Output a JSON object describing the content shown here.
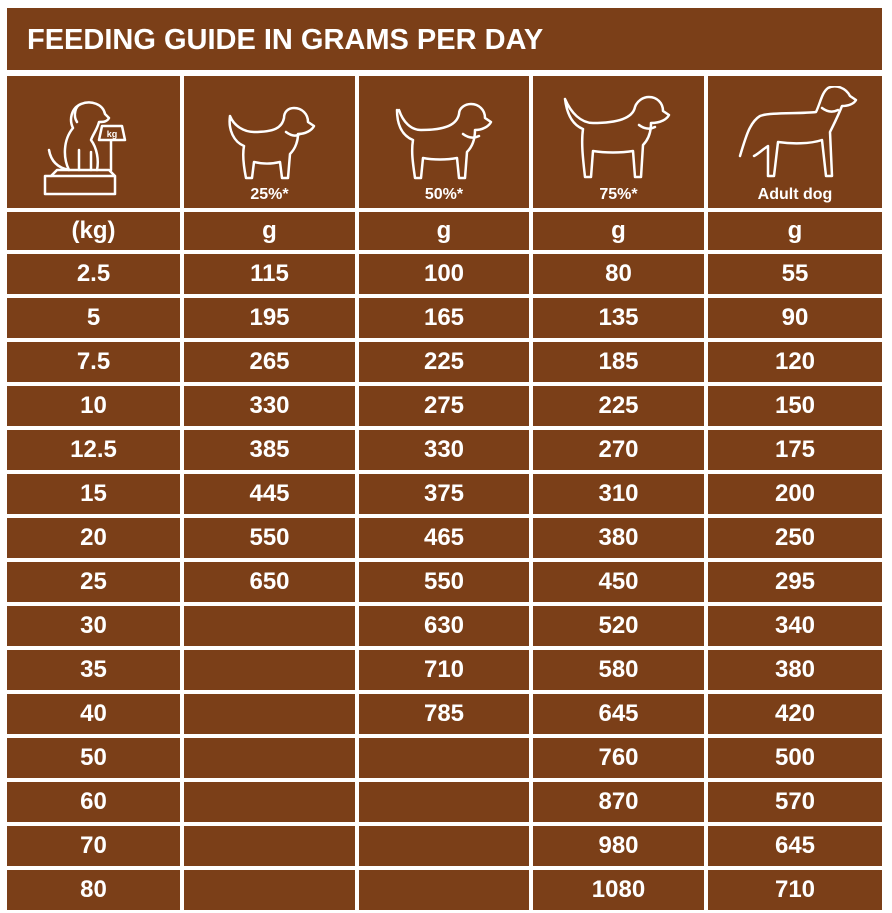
{
  "header": {
    "title": "FEEDING GUIDE IN GRAMS PER DAY"
  },
  "table": {
    "columns": [
      null,
      "25%*",
      "50%*",
      "75%*",
      "Adult dog"
    ],
    "units": [
      "(kg)",
      "g",
      "g",
      "g",
      "g"
    ],
    "rows": [
      [
        "2.5",
        "115",
        "100",
        "80",
        "55"
      ],
      [
        "5",
        "195",
        "165",
        "135",
        "90"
      ],
      [
        "7.5",
        "265",
        "225",
        "185",
        "120"
      ],
      [
        "10",
        "330",
        "275",
        "225",
        "150"
      ],
      [
        "12.5",
        "385",
        "330",
        "270",
        "175"
      ],
      [
        "15",
        "445",
        "375",
        "310",
        "200"
      ],
      [
        "20",
        "550",
        "465",
        "380",
        "250"
      ],
      [
        "25",
        "650",
        "550",
        "450",
        "295"
      ],
      [
        "30",
        null,
        "630",
        "520",
        "340"
      ],
      [
        "35",
        null,
        "710",
        "580",
        "380"
      ],
      [
        "40",
        null,
        "785",
        "645",
        "420"
      ],
      [
        "50",
        null,
        null,
        "760",
        "500"
      ],
      [
        "60",
        null,
        null,
        "870",
        "570"
      ],
      [
        "70",
        null,
        null,
        "980",
        "645"
      ],
      [
        "80",
        null,
        null,
        "1080",
        "710"
      ]
    ]
  }
}
